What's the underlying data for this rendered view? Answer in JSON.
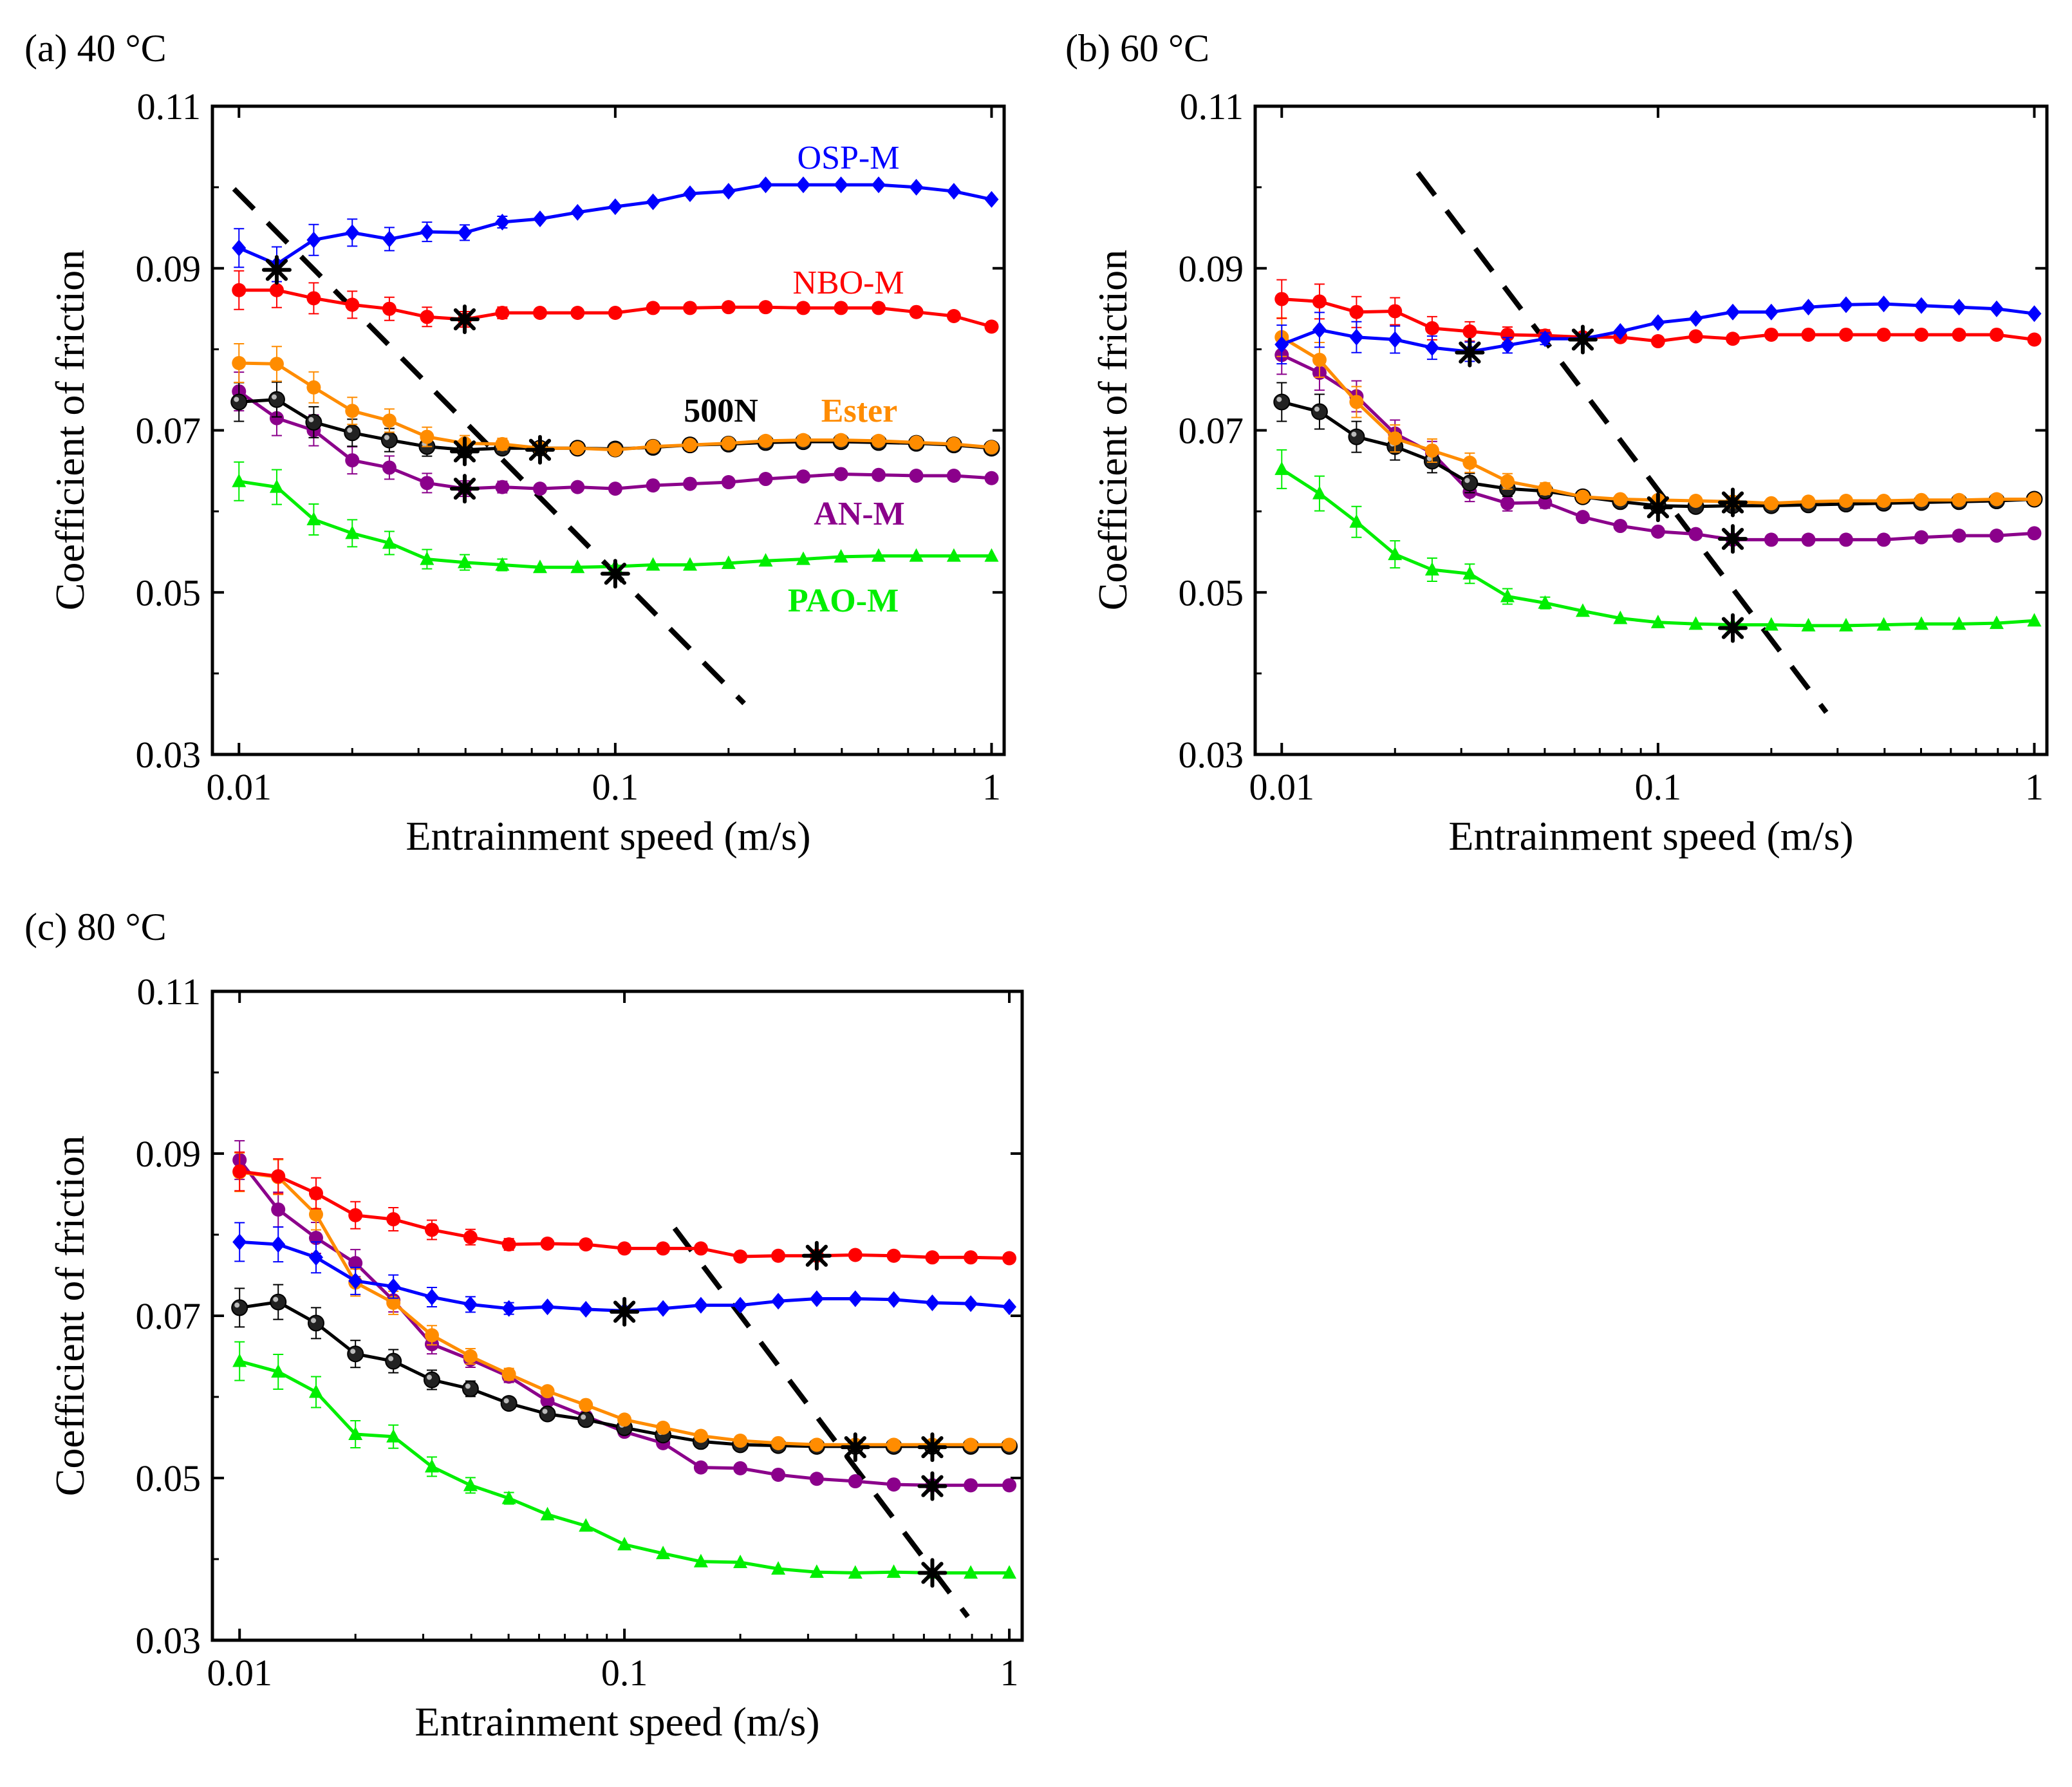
{
  "chart_data": [
    {
      "type": "line",
      "panel_label": "(a) 40 °C",
      "xlabel": "Entrainment speed (m/s)",
      "ylabel": "Coefficient of friction",
      "xscale": "log",
      "xlim": [
        0.0085,
        1.08
      ],
      "ylim": [
        0.03,
        0.11
      ],
      "xticks": [
        "0.01",
        "0.1",
        "1"
      ],
      "xtick_values": [
        0.01,
        0.1,
        1
      ],
      "yticks": [
        "0.03",
        "0.05",
        "0.07",
        "0.09",
        "0.11"
      ],
      "ytick_values": [
        0.03,
        0.05,
        0.07,
        0.09,
        0.11
      ],
      "x": [
        0.01,
        0.0126,
        0.0158,
        0.02,
        0.0251,
        0.0316,
        0.0398,
        0.0501,
        0.0631,
        0.0794,
        0.1,
        0.126,
        0.158,
        0.2,
        0.251,
        0.316,
        0.398,
        0.501,
        0.631,
        0.794,
        1.0
      ],
      "series": [
        {
          "name": "OSP-M",
          "color": "#0000ff",
          "marker": "diamond",
          "values": [
            0.0925,
            0.0905,
            0.0935,
            0.0944,
            0.0936,
            0.0945,
            0.0944,
            0.0957,
            0.0961,
            0.0969,
            0.0976,
            0.0982,
            0.0992,
            0.0995,
            0.1003,
            0.1003,
            0.1003,
            0.1003,
            0.1,
            0.0995,
            0.0985
          ]
        },
        {
          "name": "NBO-M",
          "color": "#ff0000",
          "marker": "circle",
          "values": [
            0.0873,
            0.0873,
            0.0863,
            0.0855,
            0.085,
            0.084,
            0.0837,
            0.0845,
            0.0845,
            0.0845,
            0.0845,
            0.0851,
            0.0851,
            0.0852,
            0.0852,
            0.0851,
            0.0851,
            0.0851,
            0.0846,
            0.0841,
            0.0828
          ]
        },
        {
          "name": "Ester",
          "color": "#ff8c00",
          "marker": "circle",
          "values": [
            0.0783,
            0.0782,
            0.0753,
            0.0724,
            0.0712,
            0.0692,
            0.0684,
            0.0683,
            0.0678,
            0.0678,
            0.0676,
            0.068,
            0.0682,
            0.0684,
            0.0687,
            0.0688,
            0.0688,
            0.0687,
            0.0685,
            0.0683,
            0.0679
          ]
        },
        {
          "name": "500N",
          "color": "#000000",
          "marker": "sphere",
          "values": [
            0.0735,
            0.0738,
            0.071,
            0.0697,
            0.0688,
            0.068,
            0.0676,
            0.0678,
            0.0678,
            0.0678,
            0.0677,
            0.0679,
            0.0682,
            0.0683,
            0.0685,
            0.0686,
            0.0686,
            0.0685,
            0.0684,
            0.0682,
            0.0678
          ]
        },
        {
          "name": "AN-M",
          "color": "#8b008b",
          "marker": "circle",
          "values": [
            0.0748,
            0.0715,
            0.07,
            0.0663,
            0.0654,
            0.0635,
            0.0628,
            0.063,
            0.0628,
            0.063,
            0.0628,
            0.0632,
            0.0634,
            0.0636,
            0.064,
            0.0643,
            0.0646,
            0.0645,
            0.0644,
            0.0644,
            0.0641
          ]
        },
        {
          "name": "PAO-M",
          "color": "#00ee00",
          "marker": "triangle",
          "values": [
            0.0637,
            0.063,
            0.059,
            0.0573,
            0.0561,
            0.0541,
            0.0537,
            0.0534,
            0.0531,
            0.0531,
            0.0532,
            0.0534,
            0.0534,
            0.0536,
            0.0539,
            0.0541,
            0.0544,
            0.0545,
            0.0545,
            0.0545,
            0.0545
          ]
        }
      ],
      "series_labels": [
        "OSP-M",
        "NBO-M",
        "500N",
        "Ester",
        "AN-M",
        "PAO-M"
      ],
      "transition_line": {
        "x": [
          0.0097,
          0.22
        ],
        "y": [
          0.0998,
          0.0363
        ]
      },
      "transition_markers": [
        {
          "x": 0.0126,
          "y": 0.0898
        },
        {
          "x": 0.0398,
          "y": 0.0837
        },
        {
          "x": 0.0398,
          "y": 0.0674
        },
        {
          "x": 0.0631,
          "y": 0.0676
        },
        {
          "x": 0.0398,
          "y": 0.0628
        },
        {
          "x": 0.1,
          "y": 0.0523
        }
      ]
    },
    {
      "type": "line",
      "panel_label": "(b) 60 °C",
      "xlabel": "Entrainment speed (m/s)",
      "ylabel": "Coefficient of friction",
      "xscale": "log",
      "xlim": [
        0.0085,
        1.08
      ],
      "ylim": [
        0.03,
        0.11
      ],
      "xticks": [
        "0.01",
        "0.1",
        "1"
      ],
      "xtick_values": [
        0.01,
        0.1,
        1
      ],
      "yticks": [
        "0.03",
        "0.05",
        "0.07",
        "0.09",
        "0.11"
      ],
      "ytick_values": [
        0.03,
        0.05,
        0.07,
        0.09,
        0.11
      ],
      "x": [
        0.01,
        0.0126,
        0.0158,
        0.02,
        0.0251,
        0.0316,
        0.0398,
        0.0501,
        0.0631,
        0.0794,
        0.1,
        0.126,
        0.158,
        0.2,
        0.251,
        0.316,
        0.398,
        0.501,
        0.631,
        0.794,
        1.0
      ],
      "series": [
        {
          "name": "OSP-M",
          "color": "#0000ff",
          "marker": "diamond",
          "values": [
            0.0806,
            0.0824,
            0.0815,
            0.0812,
            0.0802,
            0.0797,
            0.0805,
            0.0813,
            0.0813,
            0.0822,
            0.0833,
            0.0838,
            0.0846,
            0.0846,
            0.0852,
            0.0855,
            0.0856,
            0.0854,
            0.0852,
            0.085,
            0.0844
          ]
        },
        {
          "name": "NBO-M",
          "color": "#ff0000",
          "marker": "circle",
          "values": [
            0.0862,
            0.0859,
            0.0846,
            0.0847,
            0.0826,
            0.0822,
            0.0818,
            0.0817,
            0.0815,
            0.0815,
            0.081,
            0.0816,
            0.0813,
            0.0818,
            0.0818,
            0.0818,
            0.0818,
            0.0818,
            0.0818,
            0.0818,
            0.0812
          ]
        },
        {
          "name": "Ester",
          "color": "#ff8c00",
          "marker": "circle",
          "values": [
            0.0815,
            0.0787,
            0.0735,
            0.069,
            0.0675,
            0.066,
            0.0637,
            0.0628,
            0.0618,
            0.0615,
            0.0614,
            0.0613,
            0.0612,
            0.061,
            0.0612,
            0.0613,
            0.0613,
            0.0614,
            0.0614,
            0.0615,
            0.0615
          ]
        },
        {
          "name": "500N",
          "color": "#000000",
          "marker": "sphere",
          "values": [
            0.0735,
            0.0723,
            0.0692,
            0.068,
            0.0662,
            0.0635,
            0.0628,
            0.0625,
            0.0618,
            0.0612,
            0.0607,
            0.0606,
            0.0607,
            0.0607,
            0.0608,
            0.0609,
            0.061,
            0.0611,
            0.0612,
            0.0613,
            0.0615
          ]
        },
        {
          "name": "AN-M",
          "color": "#8b008b",
          "marker": "circle",
          "values": [
            0.0793,
            0.0771,
            0.0742,
            0.0696,
            0.0672,
            0.0624,
            0.061,
            0.0611,
            0.0593,
            0.0582,
            0.0575,
            0.0572,
            0.0565,
            0.0565,
            0.0565,
            0.0565,
            0.0565,
            0.0568,
            0.057,
            0.057,
            0.0573
          ]
        },
        {
          "name": "PAO-M",
          "color": "#00ee00",
          "marker": "triangle",
          "values": [
            0.0652,
            0.0622,
            0.0587,
            0.0547,
            0.0528,
            0.0523,
            0.0495,
            0.0487,
            0.0477,
            0.0468,
            0.0463,
            0.0461,
            0.046,
            0.046,
            0.0459,
            0.0459,
            0.046,
            0.0461,
            0.0461,
            0.0462,
            0.0465
          ]
        }
      ],
      "transition_line": {
        "x": [
          0.023,
          0.28
        ],
        "y": [
          0.1018,
          0.0352
        ]
      },
      "transition_markers": [
        {
          "x": 0.0316,
          "y": 0.0796
        },
        {
          "x": 0.0631,
          "y": 0.0812
        },
        {
          "x": 0.1,
          "y": 0.0605
        },
        {
          "x": 0.158,
          "y": 0.0611
        },
        {
          "x": 0.158,
          "y": 0.0566
        },
        {
          "x": 0.158,
          "y": 0.0456
        }
      ]
    },
    {
      "type": "line",
      "panel_label": "(c) 80 °C",
      "xlabel": "Entrainment speed (m/s)",
      "ylabel": "Coefficient of friction",
      "xscale": "log",
      "xlim": [
        0.0085,
        1.08
      ],
      "ylim": [
        0.03,
        0.11
      ],
      "xticks": [
        "0.01",
        "0.1",
        "1"
      ],
      "xtick_values": [
        0.01,
        0.1,
        1
      ],
      "yticks": [
        "0.03",
        "0.05",
        "0.07",
        "0.09",
        "0.11"
      ],
      "ytick_values": [
        0.03,
        0.05,
        0.07,
        0.09,
        0.11
      ],
      "x": [
        0.01,
        0.0126,
        0.0158,
        0.02,
        0.0251,
        0.0316,
        0.0398,
        0.0501,
        0.0631,
        0.0794,
        0.1,
        0.126,
        0.158,
        0.2,
        0.251,
        0.316,
        0.398,
        0.501,
        0.631,
        0.794,
        1.0
      ],
      "series": [
        {
          "name": "OSP-M",
          "color": "#0000ff",
          "marker": "diamond",
          "values": [
            0.0791,
            0.0788,
            0.0772,
            0.0743,
            0.0736,
            0.0723,
            0.0714,
            0.0709,
            0.0711,
            0.0708,
            0.0706,
            0.0709,
            0.0713,
            0.0713,
            0.0718,
            0.0721,
            0.0721,
            0.072,
            0.0716,
            0.0715,
            0.0711
          ]
        },
        {
          "name": "NBO-M",
          "color": "#ff0000",
          "marker": "circle",
          "values": [
            0.0878,
            0.0872,
            0.0851,
            0.0824,
            0.0819,
            0.0806,
            0.0797,
            0.0788,
            0.0789,
            0.0788,
            0.0783,
            0.0783,
            0.0783,
            0.0773,
            0.0774,
            0.0774,
            0.0775,
            0.0774,
            0.0772,
            0.0772,
            0.0771
          ]
        },
        {
          "name": "Ester",
          "color": "#ff8c00",
          "marker": "circle",
          "values": [
            0.0877,
            0.0871,
            0.0825,
            0.0741,
            0.0716,
            0.0676,
            0.065,
            0.0628,
            0.0607,
            0.059,
            0.0572,
            0.0562,
            0.0552,
            0.0546,
            0.0543,
            0.0541,
            0.0541,
            0.0541,
            0.0541,
            0.0541,
            0.0541
          ]
        },
        {
          "name": "500N",
          "color": "#000000",
          "marker": "sphere",
          "values": [
            0.071,
            0.0717,
            0.0691,
            0.0653,
            0.0644,
            0.0621,
            0.061,
            0.0592,
            0.0579,
            0.0572,
            0.0562,
            0.0553,
            0.0545,
            0.0541,
            0.054,
            0.0539,
            0.0539,
            0.0539,
            0.0539,
            0.0539,
            0.0539
          ]
        },
        {
          "name": "AN-M",
          "color": "#8b008b",
          "marker": "circle",
          "values": [
            0.0892,
            0.0831,
            0.0796,
            0.0765,
            0.0719,
            0.0665,
            0.0646,
            0.0625,
            0.0595,
            0.0576,
            0.0557,
            0.0543,
            0.0513,
            0.0512,
            0.0504,
            0.0499,
            0.0496,
            0.0492,
            0.0491,
            0.0491,
            0.0491
          ]
        },
        {
          "name": "PAO-M",
          "color": "#00ee00",
          "marker": "triangle",
          "values": [
            0.0644,
            0.0631,
            0.0606,
            0.0554,
            0.0551,
            0.0514,
            0.0491,
            0.0475,
            0.0455,
            0.0441,
            0.0418,
            0.0407,
            0.0397,
            0.0396,
            0.0388,
            0.0384,
            0.0383,
            0.0384,
            0.0383,
            0.0383,
            0.0383
          ]
        }
      ],
      "transition_line": {
        "x": [
          0.135,
          0.78
        ],
        "y": [
          0.0808,
          0.0329
        ]
      },
      "transition_markers": [
        {
          "x": 0.316,
          "y": 0.0774
        },
        {
          "x": 0.1,
          "y": 0.0705
        },
        {
          "x": 0.398,
          "y": 0.0538
        },
        {
          "x": 0.631,
          "y": 0.0538
        },
        {
          "x": 0.631,
          "y": 0.049
        },
        {
          "x": 0.631,
          "y": 0.0383
        }
      ]
    }
  ]
}
